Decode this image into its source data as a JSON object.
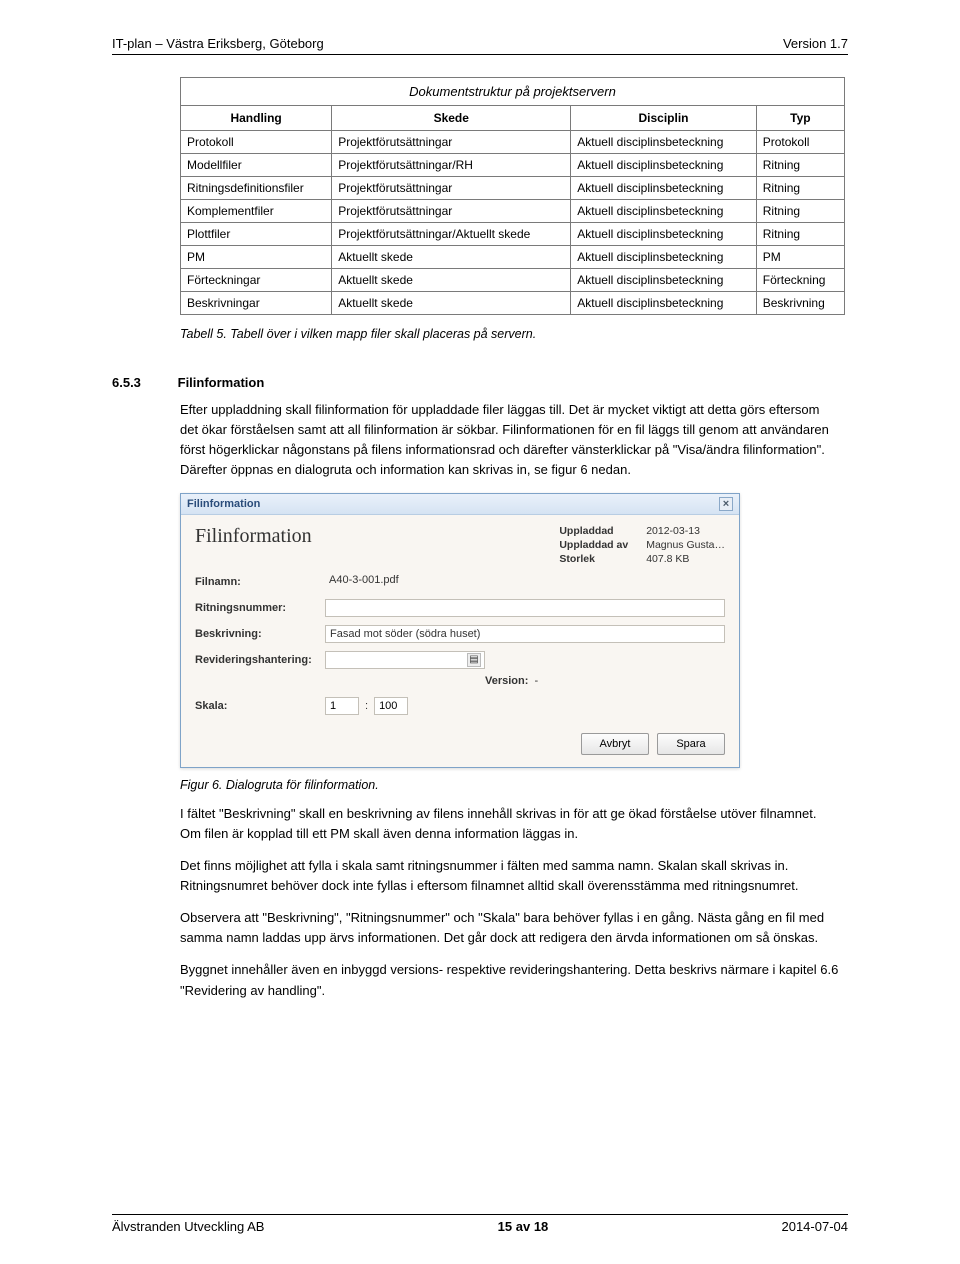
{
  "header": {
    "left": "IT-plan – Västra Eriksberg, Göteborg",
    "right": "Version 1.7"
  },
  "table": {
    "title": "Dokumentstruktur på projektservern",
    "columns": [
      "Handling",
      "Skede",
      "Disciplin",
      "Typ"
    ],
    "rows": [
      [
        "Protokoll",
        "Projektförutsättningar",
        "Aktuell disciplinsbeteckning",
        "Protokoll"
      ],
      [
        "Modellfiler",
        "Projektförutsättningar/RH",
        "Aktuell disciplinsbeteckning",
        "Ritning"
      ],
      [
        "Ritningsdefinitionsfiler",
        "Projektförutsättningar",
        "Aktuell disciplinsbeteckning",
        "Ritning"
      ],
      [
        "Komplementfiler",
        "Projektförutsättningar",
        "Aktuell disciplinsbeteckning",
        "Ritning"
      ],
      [
        "Plottfiler",
        "Projektförutsättningar/Aktuellt skede",
        "Aktuell disciplinsbeteckning",
        "Ritning"
      ],
      [
        "PM",
        "Aktuellt skede",
        "Aktuell disciplinsbeteckning",
        "PM"
      ],
      [
        "Förteckningar",
        "Aktuellt skede",
        "Aktuell disciplinsbeteckning",
        "Förteckning"
      ],
      [
        "Beskrivningar",
        "Aktuellt skede",
        "Aktuell disciplinsbeteckning",
        "Beskrivning"
      ]
    ],
    "caption": "Tabell 5. Tabell över i vilken mapp filer skall placeras på servern."
  },
  "section": {
    "number": "6.5.3",
    "title": "Filinformation"
  },
  "para1": "Efter uppladdning skall filinformation för uppladdade filer läggas till. Det är mycket viktigt att detta görs eftersom det ökar förståelsen samt att all filinformation är sökbar. Filinformationen för en fil läggs till genom att användaren först högerklickar någonstans på filens informationsrad och därefter vänsterklickar på \"Visa/ändra filinformation\". Därefter öppnas en dialogruta och information kan skrivas in, se figur 6 nedan.",
  "dialog": {
    "titlebar": "Filinformation",
    "heading": "Filinformation",
    "meta": {
      "uploaded_label": "Uppladdad",
      "uploaded_value": "2012-03-13",
      "uploaded_by_label": "Uppladdad av",
      "uploaded_by_value": "Magnus Gusta…",
      "size_label": "Storlek",
      "size_value": "407.8 KB"
    },
    "fields": {
      "filnamn_label": "Filnamn:",
      "filnamn_value": "A40-3-001.pdf",
      "ritningsnr_label": "Ritningsnummer:",
      "ritningsnr_value": "",
      "beskrivning_label": "Beskrivning:",
      "beskrivning_value": "Fasad mot söder (södra huset)",
      "rev_label": "Revideringshantering:",
      "version_label": "Version:",
      "version_value": "-",
      "skala_label": "Skala:",
      "skala_a": "1",
      "skala_b": "100"
    },
    "buttons": {
      "cancel": "Avbryt",
      "save": "Spara"
    }
  },
  "figure_caption": "Figur 6. Dialogruta för filinformation.",
  "para2": "I fältet \"Beskrivning\" skall en beskrivning av filens innehåll skrivas in för att ge ökad förståelse utöver filnamnet. Om filen är kopplad till ett PM skall även denna information läggas in.",
  "para3": "Det finns möjlighet att fylla i skala samt ritningsnummer i fälten med samma namn. Skalan skall skrivas in. Ritningsnumret behöver dock inte fyllas i eftersom filnamnet alltid skall överensstämma med ritningsnumret.",
  "para4": "Observera att \"Beskrivning\", \"Ritningsnummer\" och \"Skala\" bara behöver fyllas i en gång. Nästa gång en fil med samma namn laddas upp ärvs informationen. Det går dock att redigera den ärvda informationen om så önskas.",
  "para5": "Byggnet innehåller även en inbyggd versions- respektive revideringshantering. Detta beskrivs närmare i kapitel 6.6 \"Revidering av handling\".",
  "footer": {
    "left": "Älvstranden Utveckling AB",
    "center": "15 av 18",
    "right": "2014-07-04"
  }
}
